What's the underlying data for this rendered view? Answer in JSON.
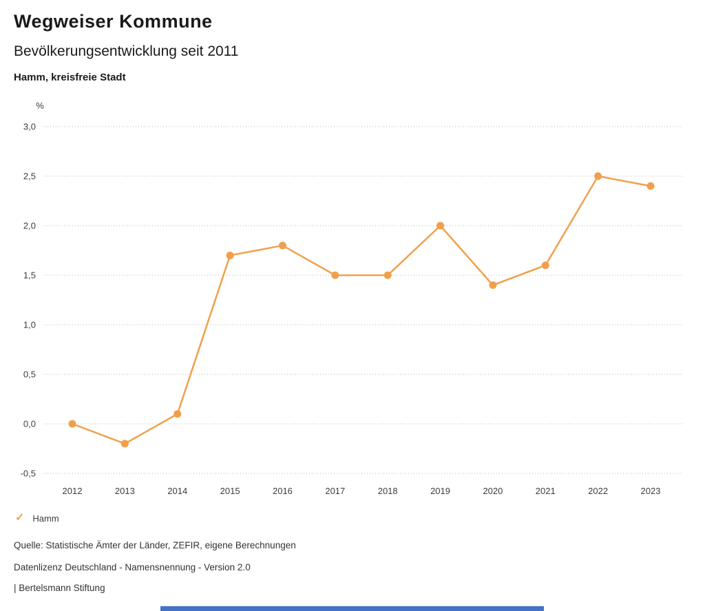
{
  "header": {
    "title": "Wegweiser Kommune",
    "subtitle": "Bevölkerungsentwicklung seit 2011",
    "region": "Hamm, kreisfreie Stadt"
  },
  "chart_data": {
    "type": "line",
    "title": "Bevölkerungsentwicklung seit 2011",
    "subtitle": "Hamm, kreisfreie Stadt",
    "unit_label": "%",
    "categories": [
      "2012",
      "2013",
      "2014",
      "2015",
      "2016",
      "2017",
      "2018",
      "2019",
      "2020",
      "2021",
      "2022",
      "2023"
    ],
    "series": [
      {
        "name": "Hamm",
        "color": "#F0A04B",
        "values": [
          0.0,
          -0.2,
          0.1,
          1.7,
          1.8,
          1.5,
          1.5,
          2.0,
          1.4,
          1.6,
          2.5,
          2.4
        ]
      }
    ],
    "ylim": [
      -0.5,
      3.0
    ],
    "ytick_values": [
      3.0,
      2.5,
      2.0,
      1.5,
      1.0,
      0.5,
      0.0,
      -0.5
    ],
    "ytick_labels": [
      "3,0",
      "2,5",
      "2,0",
      "1,5",
      "1,0",
      "0,5",
      "0,0",
      "-0,5"
    ],
    "grid": "horizontal dotted",
    "legend_position": "bottom-left"
  },
  "legend": {
    "items": [
      {
        "label": "Hamm",
        "icon": "check",
        "color": "#F0A04B"
      }
    ]
  },
  "footer": {
    "source": "Quelle: Statistische Ämter der Länder, ZEFIR, eigene Berechnungen",
    "license": "Datenlizenz Deutschland - Namensnennung - Version 2.0",
    "attribution": "| Bertelsmann Stiftung"
  },
  "colors": {
    "accent": "#F0A04B",
    "bottom_bar": "#4472C4",
    "grid": "#b5b5b5"
  }
}
